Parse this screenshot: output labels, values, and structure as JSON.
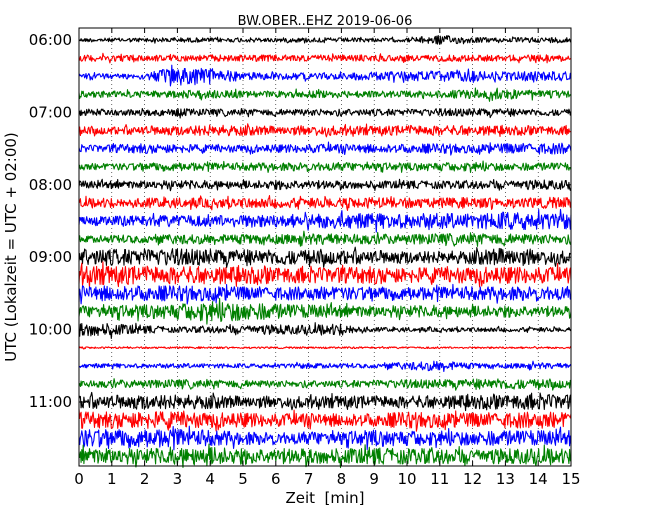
{
  "chart_data": {
    "type": "line",
    "subtype": "helicorder",
    "title": "BW.OBER..EHZ 2019-06-06",
    "xlabel": "Zeit  [min]",
    "ylabel": "UTC (Lokalzeit = UTC + 02:00)",
    "xlim": [
      0,
      15
    ],
    "x_ticks": [
      "0",
      "1",
      "2",
      "3",
      "4",
      "5",
      "6",
      "7",
      "8",
      "9",
      "10",
      "11",
      "12",
      "13",
      "14",
      "15"
    ],
    "y_ticks": [
      "06:00",
      "07:00",
      "08:00",
      "09:00",
      "10:00",
      "11:00"
    ],
    "trace_start": "06:00",
    "trace_interval_min": 15,
    "trace_count": 24,
    "trace_colors": [
      "#000000",
      "#ff0000",
      "#0000ff",
      "#008000"
    ],
    "grid": "vertical dotted lines at each minute",
    "trace_activity": [
      [
        0.18,
        0.18,
        0.2,
        0.22,
        0.2,
        0.2,
        0.2,
        0.22,
        0.2,
        0.18,
        0.18,
        0.45,
        0.25,
        0.2,
        0.22,
        0.3
      ],
      [
        0.28,
        0.3,
        0.3,
        0.28,
        0.3,
        0.3,
        0.3,
        0.28,
        0.3,
        0.3,
        0.28,
        0.3,
        0.3,
        0.28,
        0.3,
        0.3
      ],
      [
        0.25,
        0.25,
        0.3,
        0.85,
        0.8,
        0.35,
        0.35,
        0.3,
        0.3,
        0.4,
        0.45,
        0.5,
        0.45,
        0.4,
        0.45,
        0.4
      ],
      [
        0.28,
        0.3,
        0.3,
        0.35,
        0.4,
        0.3,
        0.3,
        0.35,
        0.3,
        0.3,
        0.3,
        0.35,
        0.4,
        0.45,
        0.35,
        0.35
      ],
      [
        0.3,
        0.3,
        0.3,
        0.35,
        0.3,
        0.3,
        0.3,
        0.3,
        0.3,
        0.3,
        0.3,
        0.35,
        0.35,
        0.35,
        0.3,
        0.3
      ],
      [
        0.35,
        0.35,
        0.4,
        0.45,
        0.5,
        0.45,
        0.4,
        0.45,
        0.45,
        0.4,
        0.45,
        0.45,
        0.45,
        0.4,
        0.4,
        0.4
      ],
      [
        0.3,
        0.35,
        0.45,
        0.4,
        0.35,
        0.35,
        0.35,
        0.4,
        0.4,
        0.4,
        0.4,
        0.45,
        0.4,
        0.45,
        0.5,
        0.5
      ],
      [
        0.3,
        0.3,
        0.35,
        0.4,
        0.35,
        0.35,
        0.35,
        0.4,
        0.4,
        0.35,
        0.35,
        0.4,
        0.4,
        0.35,
        0.35,
        0.35
      ],
      [
        0.35,
        0.35,
        0.35,
        0.4,
        0.35,
        0.35,
        0.45,
        0.4,
        0.35,
        0.35,
        0.35,
        0.35,
        0.35,
        0.4,
        0.45,
        0.4
      ],
      [
        0.4,
        0.45,
        0.45,
        0.45,
        0.45,
        0.45,
        0.45,
        0.45,
        0.45,
        0.5,
        0.45,
        0.45,
        0.5,
        0.45,
        0.5,
        0.5
      ],
      [
        0.4,
        0.45,
        0.5,
        0.55,
        0.5,
        0.6,
        0.55,
        0.6,
        0.7,
        0.7,
        0.65,
        0.7,
        0.65,
        0.85,
        0.8,
        0.75
      ],
      [
        0.3,
        0.35,
        0.35,
        0.45,
        0.4,
        0.45,
        0.4,
        0.5,
        0.5,
        0.45,
        0.45,
        0.5,
        0.5,
        0.5,
        0.45,
        0.4
      ],
      [
        0.8,
        0.75,
        0.75,
        0.8,
        0.7,
        0.7,
        0.7,
        0.65,
        0.65,
        0.6,
        0.6,
        0.55,
        0.6,
        0.85,
        0.7,
        0.6
      ],
      [
        0.9,
        0.85,
        0.8,
        0.8,
        0.8,
        0.75,
        0.75,
        0.7,
        0.7,
        0.8,
        0.7,
        0.7,
        0.75,
        0.75,
        0.75,
        0.7
      ],
      [
        0.7,
        0.7,
        0.7,
        0.7,
        0.7,
        0.6,
        0.6,
        0.6,
        0.6,
        0.6,
        0.6,
        0.6,
        0.6,
        0.6,
        0.65,
        0.65
      ],
      [
        0.55,
        0.55,
        0.6,
        0.75,
        0.9,
        0.85,
        0.7,
        0.6,
        0.55,
        0.5,
        0.55,
        0.5,
        0.5,
        0.55,
        0.5,
        0.45
      ],
      [
        0.65,
        0.55,
        0.35,
        0.25,
        0.3,
        0.4,
        0.45,
        0.4,
        0.55,
        0.2,
        0.2,
        0.2,
        0.2,
        0.2,
        0.2,
        0.2
      ],
      [
        0.08,
        0.08,
        0.08,
        0.08,
        0.08,
        0.08,
        0.08,
        0.08,
        0.08,
        0.08,
        0.08,
        0.08,
        0.08,
        0.08,
        0.08,
        0.08
      ],
      [
        0.2,
        0.2,
        0.2,
        0.2,
        0.2,
        0.2,
        0.2,
        0.25,
        0.2,
        0.2,
        0.35,
        0.45,
        0.25,
        0.2,
        0.3,
        0.2
      ],
      [
        0.3,
        0.35,
        0.35,
        0.4,
        0.35,
        0.35,
        0.3,
        0.3,
        0.3,
        0.35,
        0.4,
        0.4,
        0.45,
        0.5,
        0.4,
        0.4
      ],
      [
        0.6,
        0.6,
        0.7,
        0.65,
        0.6,
        0.55,
        0.55,
        0.55,
        0.55,
        0.55,
        0.55,
        0.6,
        0.6,
        0.65,
        0.7,
        0.65
      ],
      [
        0.75,
        0.75,
        0.8,
        0.75,
        0.7,
        0.65,
        0.6,
        0.6,
        0.6,
        0.6,
        0.75,
        0.7,
        0.65,
        0.7,
        0.75,
        0.7
      ],
      [
        0.85,
        0.8,
        0.85,
        0.85,
        0.7,
        0.6,
        0.55,
        0.6,
        0.6,
        0.75,
        0.7,
        0.65,
        0.65,
        0.7,
        0.7,
        0.7
      ],
      [
        0.75,
        0.7,
        0.7,
        0.75,
        0.85,
        0.75,
        0.7,
        0.7,
        0.7,
        0.75,
        0.7,
        0.7,
        0.7,
        0.7,
        0.7,
        0.7
      ]
    ]
  }
}
